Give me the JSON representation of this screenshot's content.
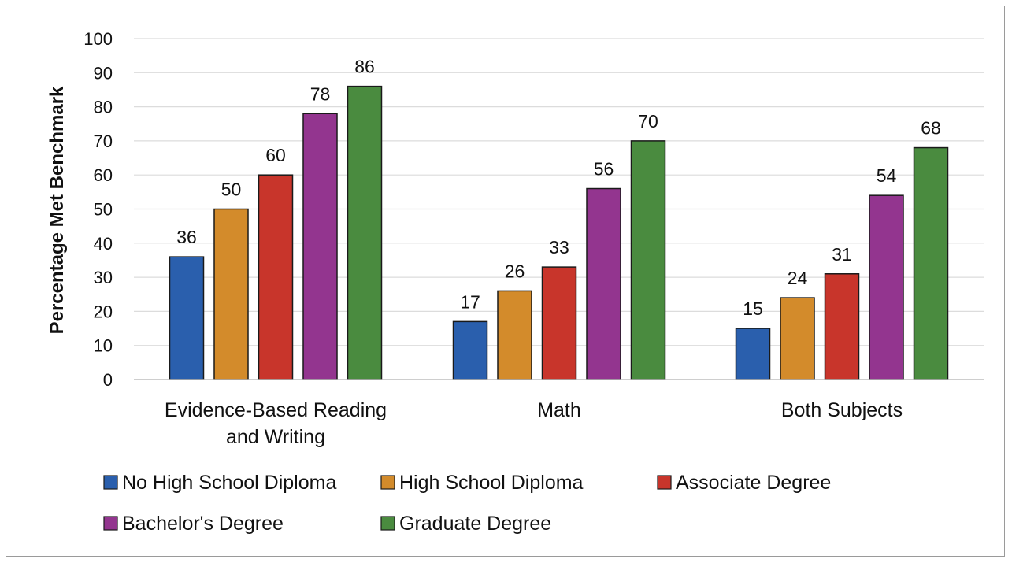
{
  "chart_data": {
    "type": "bar",
    "title": "",
    "xlabel": "",
    "ylabel": "Percentage Met Benchmark",
    "ylim": [
      0,
      100
    ],
    "yticks": [
      0,
      10,
      20,
      30,
      40,
      50,
      60,
      70,
      80,
      90,
      100
    ],
    "grid": true,
    "legend_position": "bottom",
    "categories": [
      [
        "Evidence-Based Reading",
        "and Writing"
      ],
      [
        "Math"
      ],
      [
        "Both Subjects"
      ]
    ],
    "series": [
      {
        "name": "No High School Diploma",
        "color": "#2a5fad",
        "values": [
          36,
          17,
          15
        ]
      },
      {
        "name": "High School Diploma",
        "color": "#d38b2b",
        "values": [
          50,
          26,
          24
        ]
      },
      {
        "name": "Associate Degree",
        "color": "#c8352b",
        "values": [
          60,
          33,
          31
        ]
      },
      {
        "name": "Bachelor's Degree",
        "color": "#93358f",
        "values": [
          78,
          56,
          54
        ]
      },
      {
        "name": "Graduate Degree",
        "color": "#4a8b3f",
        "values": [
          86,
          70,
          68
        ]
      }
    ]
  }
}
